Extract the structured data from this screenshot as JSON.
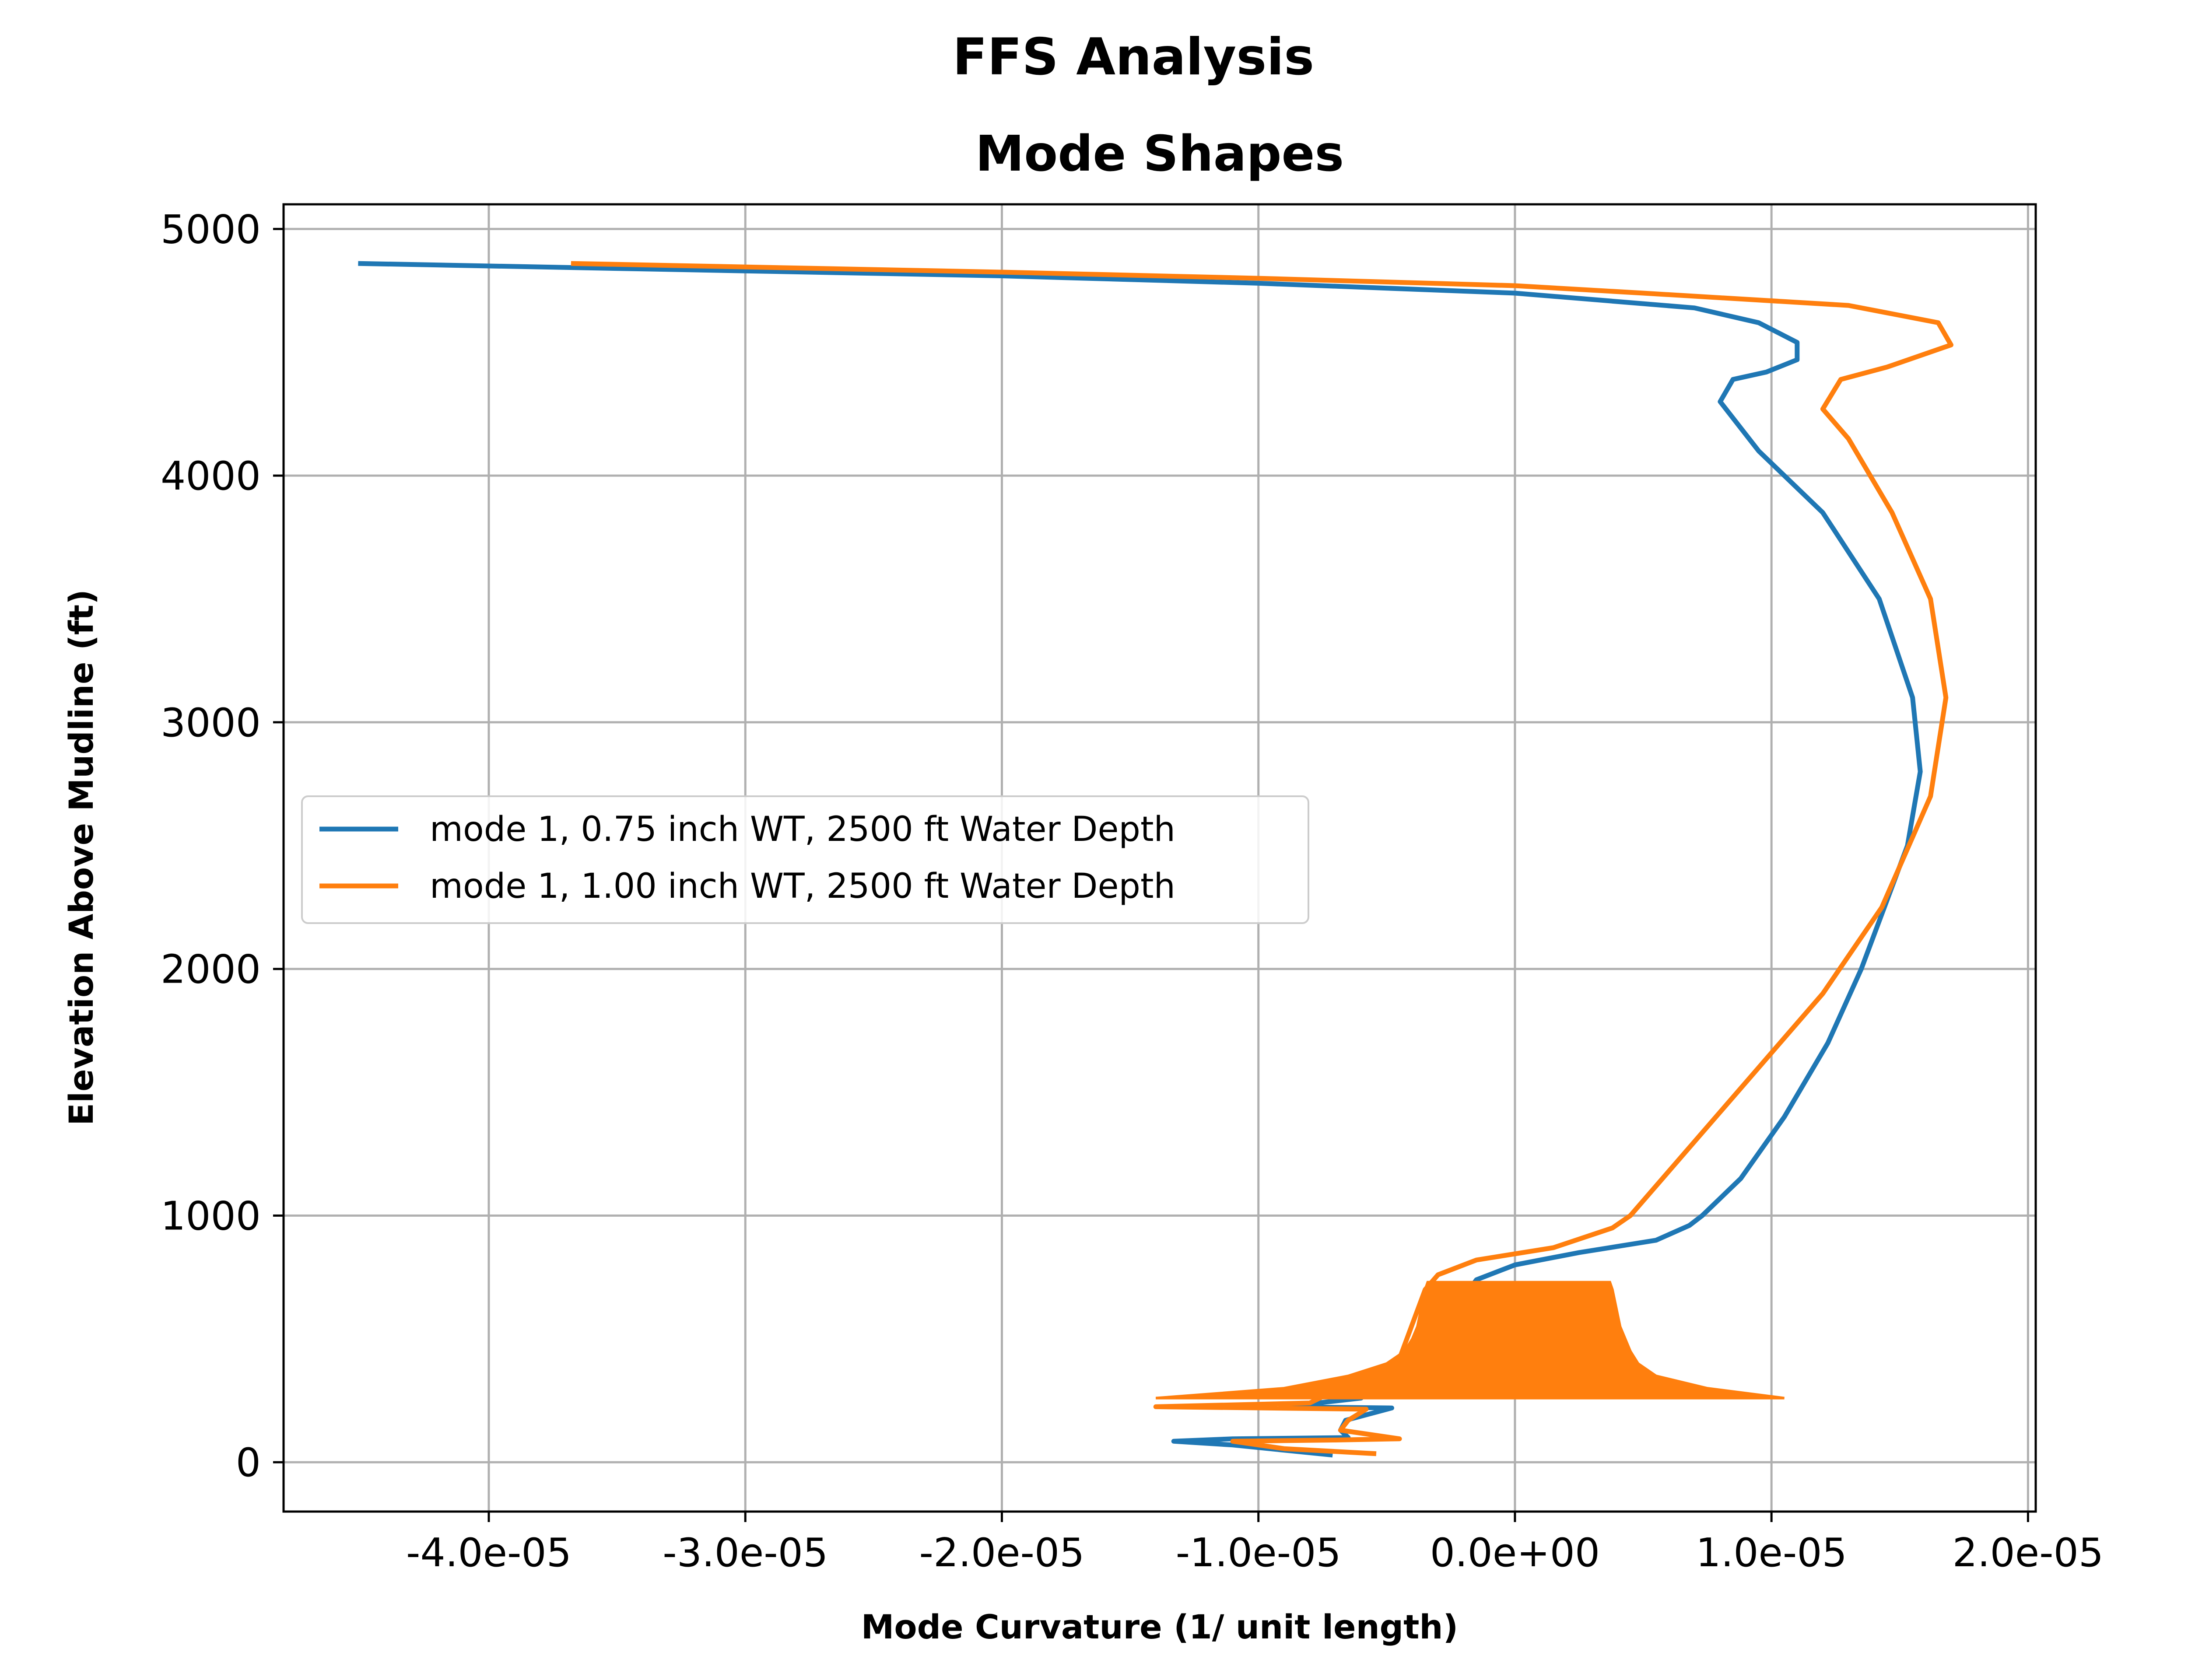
{
  "chart_data": {
    "type": "line",
    "suptitle": "FFS Analysis",
    "title": "Mode Shapes",
    "xlabel": "Mode Curvature (1/ unit length)",
    "ylabel": "Elevation Above Mudline (ft)",
    "xlim": [
      -4.8e-05,
      2.03e-05
    ],
    "ylim": [
      -200,
      5100
    ],
    "x_ticks": [
      -4e-05,
      -3e-05,
      -2e-05,
      -1e-05,
      0.0,
      1e-05,
      2e-05
    ],
    "x_tick_labels": [
      "-4.0e-05",
      "-3.0e-05",
      "-2.0e-05",
      "-1.0e-05",
      "0.0e+00",
      "1.0e-05",
      "2.0e-05"
    ],
    "y_ticks": [
      0,
      1000,
      2000,
      3000,
      4000,
      5000
    ],
    "y_tick_labels": [
      "0",
      "1000",
      "2000",
      "3000",
      "4000",
      "5000"
    ],
    "grid": true,
    "legend_position": "center-left",
    "series": [
      {
        "name": "mode 1, 0.75 inch WT, 2500 ft Water Depth",
        "color": "#1f77b4",
        "points": [
          [
            -7.2e-06,
            30
          ],
          [
            -1.1e-05,
            70
          ],
          [
            -1.33e-05,
            85
          ],
          [
            -1.1e-05,
            95
          ],
          [
            -6.5e-06,
            100
          ],
          [
            -6.8e-06,
            130
          ],
          [
            -6.6e-06,
            170
          ],
          [
            -4.8e-06,
            220
          ],
          [
            -9e-06,
            225
          ],
          [
            -6e-06,
            260
          ],
          [
            -2e-06,
            670
          ],
          [
            -1.5e-06,
            740
          ],
          [
            0.0,
            800
          ],
          [
            2.5e-06,
            850
          ],
          [
            5.5e-06,
            900
          ],
          [
            6.8e-06,
            960
          ],
          [
            7.3e-06,
            1000
          ],
          [
            8.8e-06,
            1150
          ],
          [
            1.05e-05,
            1400
          ],
          [
            1.22e-05,
            1700
          ],
          [
            1.35e-05,
            2000
          ],
          [
            1.53e-05,
            2500
          ],
          [
            1.58e-05,
            2800
          ],
          [
            1.55e-05,
            3100
          ],
          [
            1.42e-05,
            3500
          ],
          [
            1.2e-05,
            3850
          ],
          [
            9.5e-06,
            4100
          ],
          [
            8e-06,
            4300
          ],
          [
            8.5e-06,
            4390
          ],
          [
            9.8e-06,
            4420
          ],
          [
            1.1e-05,
            4470
          ],
          [
            1.1e-05,
            4540
          ],
          [
            9.5e-06,
            4620
          ],
          [
            7e-06,
            4680
          ],
          [
            0.0,
            4740
          ],
          [
            -1e-05,
            4780
          ],
          [
            -2e-05,
            4810
          ],
          [
            -3e-05,
            4830
          ],
          [
            -4.5e-05,
            4860
          ]
        ]
      },
      {
        "name": "mode 1, 1.00 inch WT, 2500 ft Water Depth",
        "color": "#ff7f0e",
        "points": [
          [
            -5.5e-06,
            35
          ],
          [
            -9e-06,
            55
          ],
          [
            -1.1e-05,
            85
          ],
          [
            -7e-06,
            90
          ],
          [
            -4.5e-06,
            95
          ],
          [
            -6.8e-06,
            130
          ],
          [
            -6.5e-06,
            170
          ],
          [
            -5.8e-06,
            215
          ],
          [
            -1.4e-05,
            225
          ],
          [
            -8e-06,
            240
          ],
          [
            -4.5e-06,
            420
          ],
          [
            -3.5e-06,
            700
          ],
          [
            -3e-06,
            760
          ],
          [
            -1.5e-06,
            820
          ],
          [
            1.5e-06,
            870
          ],
          [
            3.8e-06,
            950
          ],
          [
            4.5e-06,
            1000
          ],
          [
            7e-06,
            1300
          ],
          [
            9.5e-06,
            1600
          ],
          [
            1.2e-05,
            1900
          ],
          [
            1.43e-05,
            2250
          ],
          [
            1.62e-05,
            2700
          ],
          [
            1.68e-05,
            3100
          ],
          [
            1.62e-05,
            3500
          ],
          [
            1.47e-05,
            3850
          ],
          [
            1.3e-05,
            4150
          ],
          [
            1.2e-05,
            4270
          ],
          [
            1.27e-05,
            4390
          ],
          [
            1.45e-05,
            4440
          ],
          [
            1.7e-05,
            4530
          ],
          [
            1.65e-05,
            4620
          ],
          [
            1.3e-05,
            4690
          ],
          [
            5e-06,
            4740
          ],
          [
            0.0,
            4770
          ],
          [
            -1e-05,
            4800
          ],
          [
            -2e-05,
            4825
          ],
          [
            -3.67e-05,
            4860
          ]
        ],
        "band": {
          "y": [
            260,
            300,
            350,
            400,
            450,
            500,
            550,
            600,
            650,
            700,
            730
          ],
          "x_left": [
            -1.4e-05,
            -9e-06,
            -6.5e-06,
            -5e-06,
            -4.3e-06,
            -4e-06,
            -3.8e-06,
            -3.7e-06,
            -3.6e-06,
            -3.5e-06,
            -3.4e-06
          ],
          "x_right": [
            1.05e-05,
            7.5e-06,
            5.5e-06,
            4.8e-06,
            4.5e-06,
            4.3e-06,
            4.1e-06,
            4e-06,
            3.9e-06,
            3.8e-06,
            3.7e-06
          ]
        }
      }
    ]
  }
}
